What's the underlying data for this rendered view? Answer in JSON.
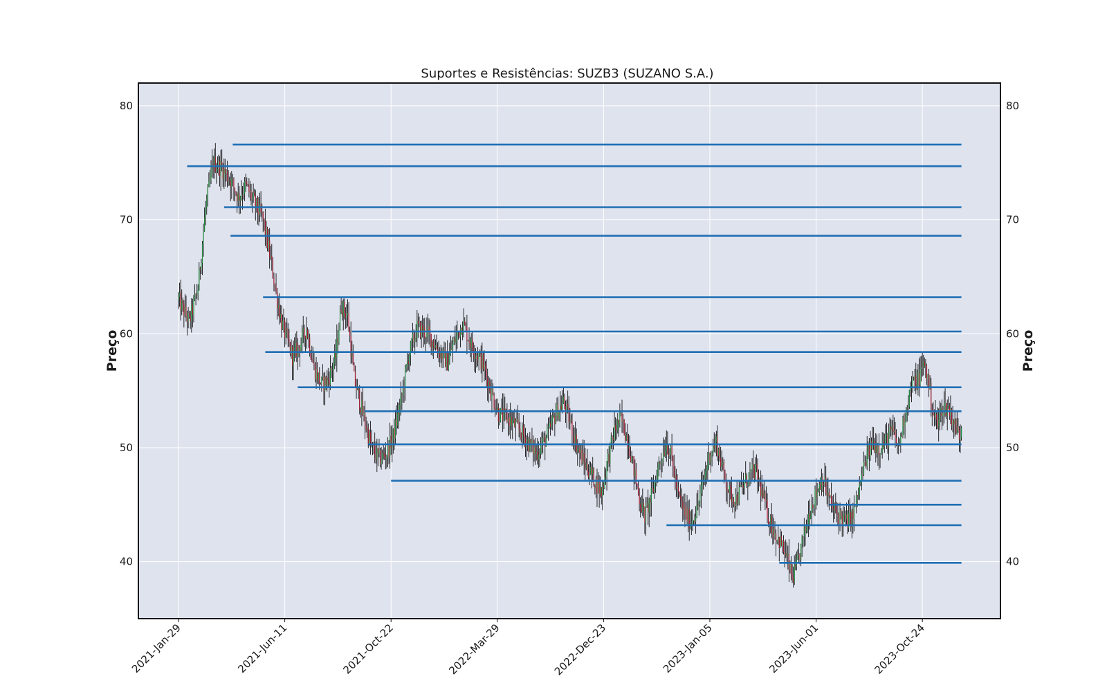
{
  "chart_data": {
    "type": "candlestick",
    "title": "Suportes e Resistências: SUZB3 (SUZANO S.A.)",
    "ylabel_left": "Preço",
    "ylabel_right": "Preço",
    "ylim": [
      35,
      82
    ],
    "yticks": [
      40,
      50,
      60,
      70,
      80
    ],
    "grid": true,
    "background": "#dfe3ee",
    "line_color": "#1f6fb4",
    "up_color": "#1f8b3c",
    "down_color": "#a3172d",
    "x_tick_labels": [
      "2021-Jan-29",
      "2021-Jun-11",
      "2021-Oct-22",
      "2022-Mar-29",
      "2022-Dec-23",
      "2023-Jan-05",
      "2023-Jun-01",
      "2023-Oct-24"
    ],
    "x_tick_index": [
      0,
      98,
      196,
      294,
      392,
      490,
      588,
      686
    ],
    "n_sessions": 723,
    "price_path": [
      [
        0,
        63.0
      ],
      [
        10,
        61.0
      ],
      [
        18,
        64.0
      ],
      [
        25,
        71.0
      ],
      [
        32,
        75.0
      ],
      [
        40,
        74.5
      ],
      [
        48,
        73.5
      ],
      [
        55,
        72.0
      ],
      [
        62,
        73.0
      ],
      [
        70,
        71.5
      ],
      [
        78,
        70.0
      ],
      [
        82,
        68.0
      ],
      [
        86,
        66.0
      ],
      [
        90,
        63.5
      ],
      [
        95,
        61.0
      ],
      [
        100,
        59.5
      ],
      [
        105,
        58.0
      ],
      [
        112,
        59.0
      ],
      [
        118,
        60.5
      ],
      [
        125,
        57.0
      ],
      [
        132,
        55.5
      ],
      [
        138,
        56.0
      ],
      [
        145,
        58.0
      ],
      [
        150,
        62.5
      ],
      [
        156,
        61.5
      ],
      [
        162,
        56.0
      ],
      [
        170,
        53.0
      ],
      [
        178,
        50.0
      ],
      [
        185,
        49.0
      ],
      [
        192,
        49.5
      ],
      [
        198,
        51.0
      ],
      [
        205,
        54.0
      ],
      [
        212,
        58.0
      ],
      [
        220,
        60.5
      ],
      [
        230,
        60.0
      ],
      [
        240,
        58.5
      ],
      [
        248,
        57.5
      ],
      [
        255,
        59.5
      ],
      [
        262,
        61.0
      ],
      [
        270,
        59.0
      ],
      [
        280,
        57.5
      ],
      [
        288,
        55.0
      ],
      [
        295,
        53.0
      ],
      [
        305,
        52.5
      ],
      [
        315,
        51.5
      ],
      [
        322,
        50.5
      ],
      [
        330,
        49.5
      ],
      [
        340,
        51.0
      ],
      [
        348,
        53.0
      ],
      [
        355,
        54.0
      ],
      [
        362,
        52.0
      ],
      [
        368,
        50.0
      ],
      [
        375,
        48.5
      ],
      [
        382,
        47.5
      ],
      [
        390,
        46.0
      ],
      [
        396,
        49.0
      ],
      [
        402,
        51.5
      ],
      [
        408,
        52.5
      ],
      [
        415,
        50.5
      ],
      [
        420,
        48.0
      ],
      [
        425,
        45.5
      ],
      [
        430,
        44.0
      ],
      [
        437,
        46.0
      ],
      [
        443,
        48.5
      ],
      [
        450,
        50.5
      ],
      [
        455,
        49.0
      ],
      [
        460,
        46.0
      ],
      [
        466,
        44.5
      ],
      [
        472,
        43.5
      ],
      [
        478,
        44.5
      ],
      [
        484,
        47.0
      ],
      [
        490,
        49.5
      ],
      [
        496,
        50.5
      ],
      [
        502,
        48.0
      ],
      [
        508,
        46.0
      ],
      [
        514,
        45.5
      ],
      [
        520,
        46.5
      ],
      [
        526,
        47.5
      ],
      [
        532,
        48.0
      ],
      [
        538,
        46.0
      ],
      [
        544,
        44.0
      ],
      [
        550,
        42.5
      ],
      [
        556,
        41.5
      ],
      [
        562,
        40.0
      ],
      [
        566,
        38.5
      ],
      [
        570,
        39.5
      ],
      [
        576,
        42.0
      ],
      [
        582,
        44.5
      ],
      [
        588,
        46.0
      ],
      [
        594,
        47.5
      ],
      [
        598,
        46.0
      ],
      [
        604,
        44.5
      ],
      [
        610,
        44.0
      ],
      [
        616,
        43.5
      ],
      [
        622,
        44.0
      ],
      [
        628,
        46.5
      ],
      [
        634,
        49.0
      ],
      [
        640,
        50.5
      ],
      [
        646,
        50.0
      ],
      [
        652,
        50.5
      ],
      [
        658,
        51.5
      ],
      [
        664,
        50.0
      ],
      [
        670,
        53.0
      ],
      [
        676,
        55.5
      ],
      [
        682,
        56.0
      ],
      [
        688,
        57.5
      ],
      [
        692,
        55.5
      ],
      [
        696,
        53.0
      ],
      [
        700,
        52.0
      ],
      [
        704,
        53.5
      ],
      [
        710,
        53.5
      ],
      [
        716,
        52.0
      ],
      [
        720,
        51.0
      ],
      [
        722,
        52.0
      ]
    ],
    "support_resistance": [
      {
        "start": 50,
        "level": 76.6
      },
      {
        "start": 8,
        "level": 74.7
      },
      {
        "start": 42,
        "level": 71.1
      },
      {
        "start": 48,
        "level": 68.6
      },
      {
        "start": 78,
        "level": 63.2
      },
      {
        "start": 160,
        "level": 60.2
      },
      {
        "start": 80,
        "level": 58.4
      },
      {
        "start": 110,
        "level": 55.3
      },
      {
        "start": 172,
        "level": 53.2
      },
      {
        "start": 175,
        "level": 50.3
      },
      {
        "start": 196,
        "level": 47.1
      },
      {
        "start": 600,
        "level": 45.0
      },
      {
        "start": 450,
        "level": 43.2
      },
      {
        "start": 554,
        "level": 39.9
      }
    ]
  }
}
